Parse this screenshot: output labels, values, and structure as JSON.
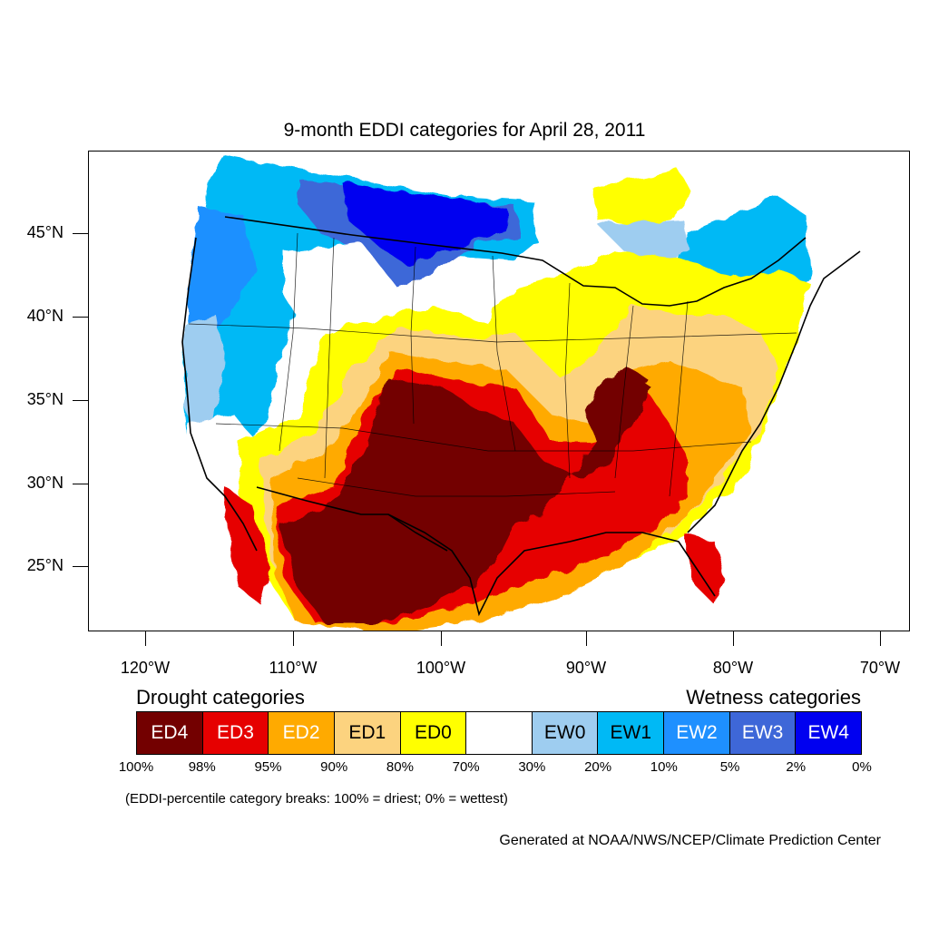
{
  "title": "9-month EDDI categories for April 28, 2011",
  "axes": {
    "lat_labels": [
      "45°N",
      "40°N",
      "35°N",
      "30°N",
      "25°N"
    ],
    "lon_labels": [
      "120°W",
      "110°W",
      "100°W",
      "90°W",
      "80°W",
      "70°W"
    ]
  },
  "legend": {
    "drought_heading": "Drought categories",
    "wetness_heading": "Wetness categories",
    "categories": [
      {
        "label": "ED4",
        "color": "#730000",
        "text_color": "#ffffff"
      },
      {
        "label": "ED3",
        "color": "#e60000",
        "text_color": "#ffffff"
      },
      {
        "label": "ED2",
        "color": "#ffaa00",
        "text_color": "#ffffff"
      },
      {
        "label": "ED1",
        "color": "#fcd37f",
        "text_color": "#000000"
      },
      {
        "label": "ED0",
        "color": "#ffff00",
        "text_color": "#000000"
      },
      {
        "label": "",
        "color": "#ffffff",
        "text_color": "#000000"
      },
      {
        "label": "EW0",
        "color": "#9ecdf0",
        "text_color": "#000000"
      },
      {
        "label": "EW1",
        "color": "#00b9f5",
        "text_color": "#000000"
      },
      {
        "label": "EW2",
        "color": "#1e90ff",
        "text_color": "#ffffff"
      },
      {
        "label": "EW3",
        "color": "#3e67d8",
        "text_color": "#ffffff"
      },
      {
        "label": "EW4",
        "color": "#0000f0",
        "text_color": "#ffffff"
      }
    ],
    "percentiles": [
      "100%",
      "98%",
      "95%",
      "90%",
      "80%",
      "70%",
      "30%",
      "20%",
      "10%",
      "5%",
      "2%",
      "0%"
    ],
    "note": "(EDDI-percentile category breaks: 100% = driest; 0% = wettest)"
  },
  "credit": "Generated at NOAA/NWS/NCEP/Climate Prediction Center"
}
